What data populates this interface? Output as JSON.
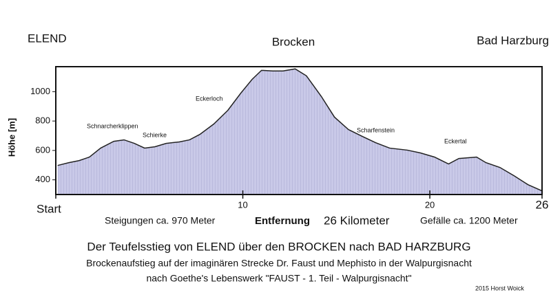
{
  "chart_data": {
    "type": "area",
    "places": [
      "ELEND",
      "Brocken",
      "Bad Harzburg"
    ],
    "ylabel": "Höhe [m]",
    "xlabel": "Entfernung",
    "xlabel_note": "26 Kilometer",
    "ascent_note": "Steigungen ca. 970 Meter",
    "descent_note": "Gefälle ca. 1200 Meter",
    "title": "Der Teufelsstieg von ELEND über den BROCKEN nach BAD HARZBURG",
    "subtitle_1": "Brockenaufstieg auf der imaginären Strecke Dr. Faust und Mephisto in der Walpurgisnacht",
    "subtitle_2": "nach Goethe's Lebenswerk \"FAUST - 1. Teil - Walpurgisnacht\"",
    "credit": "2015 Horst Woick",
    "annotations": [
      "Schnarcherklippen",
      "Schierke",
      "Eckerloch",
      "Scharfenstein",
      "Eckertal"
    ],
    "color": "#c9c9e8",
    "xlim": [
      0,
      26
    ],
    "xticks": [
      {
        "value": 0,
        "label": "Start"
      },
      10,
      20,
      26
    ],
    "ylim": [
      300,
      1170
    ],
    "yticks": [
      400,
      600,
      800,
      1000
    ],
    "x": [
      0.1,
      0.7,
      1.25,
      1.8,
      2.4,
      3.1,
      3.65,
      4.2,
      4.75,
      5.3,
      5.9,
      6.6,
      7.15,
      7.7,
      8.45,
      9.2,
      9.9,
      10.5,
      11.0,
      11.6,
      12.15,
      12.8,
      13.4,
      14.2,
      14.9,
      15.65,
      16.4,
      17.1,
      17.85,
      18.8,
      19.5,
      20.25,
      21.0,
      21.55,
      22.5,
      23.0,
      23.75,
      24.5,
      25.25,
      26
    ],
    "values": [
      498,
      517,
      531,
      555,
      616,
      662,
      672,
      648,
      616,
      625,
      648,
      658,
      672,
      709,
      780,
      873,
      991,
      1084,
      1145,
      1141,
      1141,
      1155,
      1108,
      967,
      827,
      742,
      695,
      653,
      616,
      602,
      583,
      555,
      508,
      545,
      555,
      517,
      484,
      428,
      367,
      325
    ]
  }
}
